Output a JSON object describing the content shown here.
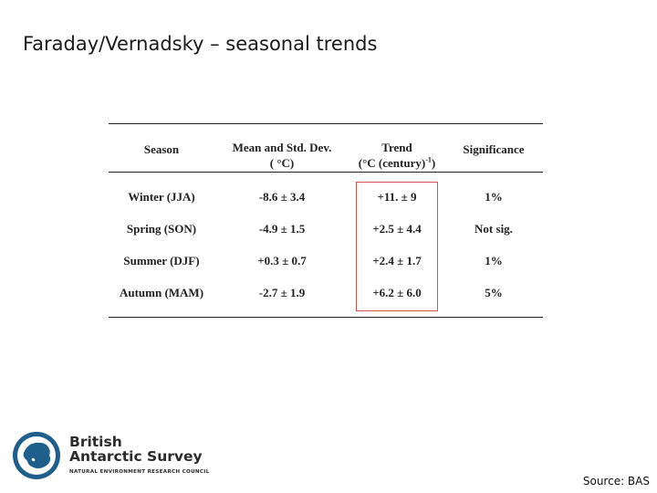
{
  "slide": {
    "title": "Faraday/Vernadsky – seasonal trends",
    "source": "Source: BAS"
  },
  "table": {
    "headers": {
      "season": "Season",
      "mean_line1": "Mean and Std.  Dev.",
      "mean_line2": "( °C)",
      "trend_line1": "Trend",
      "trend_line2a": "(°C (century)",
      "trend_sup": "-1",
      "trend_line2b": ")",
      "significance": "Significance"
    },
    "rows": [
      {
        "season": "Winter (JJA)",
        "mean": "-8.6 ± 3.4",
        "trend": "+11. ± 9",
        "significance": "1%"
      },
      {
        "season": "Spring (SON)",
        "mean": "-4.9 ± 1.5",
        "trend": "+2.5 ± 4.4",
        "significance": "Not sig."
      },
      {
        "season": "Summer (DJF)",
        "mean": "+0.3 ± 0.7",
        "trend": "+2.4 ± 1.7",
        "significance": "1%"
      },
      {
        "season": "Autumn (MAM)",
        "mean": "-2.7 ± 1.9",
        "trend": "+6.2 ± 6.0",
        "significance": "5%"
      }
    ],
    "highlight_color": "#d9534f"
  },
  "logo": {
    "line1": "British",
    "line2": "Antarctic Survey",
    "subtitle": "NATURAL ENVIRONMENT RESEARCH COUNCIL",
    "brand_color": "#1f5f8b",
    "icon": "antarctica-globe-icon"
  }
}
